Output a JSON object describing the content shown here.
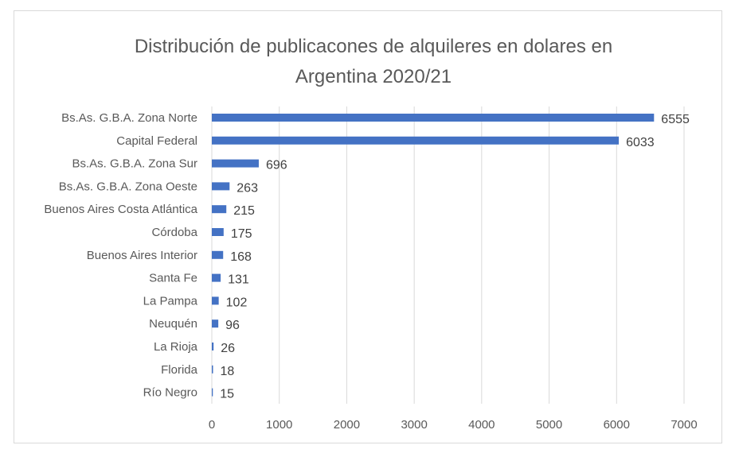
{
  "chart_data": {
    "type": "bar",
    "orientation": "horizontal",
    "title_lines": [
      "Distribución de publicacones de alquileres en dolares en",
      "Argentina  2020/21"
    ],
    "categories": [
      "Bs.As. G.B.A. Zona Norte",
      "Capital Federal",
      "Bs.As. G.B.A. Zona Sur",
      "Bs.As. G.B.A. Zona Oeste",
      "Buenos Aires Costa Atlántica",
      "Córdoba",
      "Buenos Aires Interior",
      "Santa Fe",
      "La Pampa",
      "Neuquén",
      "La Rioja",
      "Florida",
      "Río Negro"
    ],
    "values": [
      6555,
      6033,
      696,
      263,
      215,
      175,
      168,
      131,
      102,
      96,
      26,
      18,
      15
    ],
    "xlim": [
      0,
      7000
    ],
    "xticks": [
      0,
      1000,
      2000,
      3000,
      4000,
      5000,
      6000,
      7000
    ],
    "grid": true,
    "legend": "none",
    "bar_color": "#4472c4"
  }
}
